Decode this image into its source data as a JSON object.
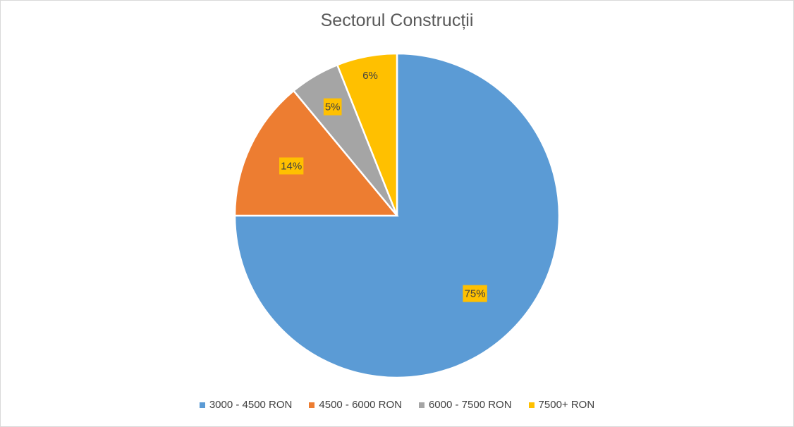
{
  "chart_data": {
    "type": "pie",
    "title": "Sectorul Construcții",
    "categories": [
      "3000 - 4500 RON",
      "4500 - 6000 RON",
      "6000 - 7500 RON",
      "7500+ RON"
    ],
    "values": [
      75,
      14,
      5,
      6
    ],
    "data_labels": [
      "75%",
      "14%",
      "5%",
      "6%"
    ],
    "colors": [
      "#5b9bd5",
      "#ed7d31",
      "#a5a5a5",
      "#ffc000"
    ],
    "legend_position": "bottom"
  }
}
